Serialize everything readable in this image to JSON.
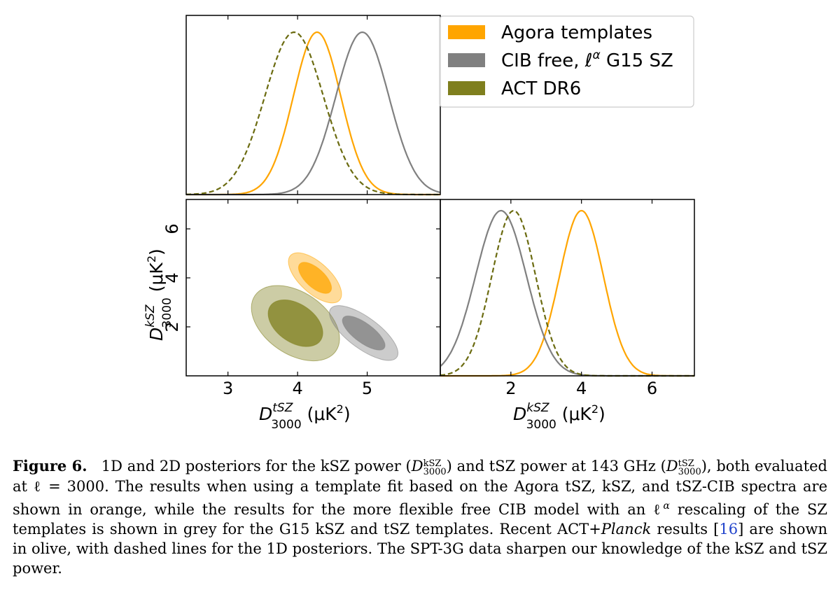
{
  "chart_data": [
    {
      "type": "line",
      "panel": "top-left (1D marginal of tSZ)",
      "xlabel": "D_3000^tSZ (μK²)",
      "xlim": [
        2.4,
        6.05
      ],
      "series": [
        {
          "name": "Agora templates",
          "color": "#ffa500",
          "style": "solid",
          "mean": 4.28,
          "sigma": 0.34
        },
        {
          "name": "CIB free, ℓ^α G15 SZ",
          "color": "#808080",
          "style": "solid",
          "mean": 4.93,
          "sigma": 0.38
        },
        {
          "name": "ACT DR6",
          "color": "#6b6b10",
          "style": "dashed",
          "mean": 3.95,
          "sigma": 0.42
        }
      ]
    },
    {
      "type": "scatter",
      "panel": "bottom-left (2D posterior)",
      "xlabel": "D_3000^tSZ (μK²)",
      "ylabel": "D_3000^kSZ (μK²)",
      "xlim": [
        2.4,
        6.05
      ],
      "ylim": [
        0,
        7.2
      ],
      "xticks": [
        3,
        4,
        5
      ],
      "yticks": [
        2,
        4,
        6
      ],
      "ellipses": [
        {
          "name": "Agora templates",
          "color": "#ffa500",
          "center": [
            4.25,
            4.0
          ],
          "slope": -2.6,
          "sigma_major": 0.4,
          "sigma_minor": 0.095
        },
        {
          "name": "CIB free, ℓ^α G15 SZ",
          "color": "#808080",
          "center": [
            4.95,
            1.75
          ],
          "slope": -2.1,
          "sigma_major": 0.45,
          "sigma_minor": 0.1
        },
        {
          "name": "ACT DR6",
          "color": "#7f7f1e",
          "center": [
            3.97,
            2.15
          ],
          "slope": -1.95,
          "sigma_major": 0.52,
          "sigma_minor": 0.2
        }
      ]
    },
    {
      "type": "line",
      "panel": "bottom-right (1D marginal of kSZ)",
      "xlabel": "D_3000^kSZ (μK²)",
      "xlim": [
        0,
        7.2
      ],
      "xticks": [
        2,
        4,
        6
      ],
      "series": [
        {
          "name": "Agora templates",
          "color": "#ffa500",
          "style": "solid",
          "mean": 4.0,
          "sigma": 0.62
        },
        {
          "name": "CIB free, ℓ^α G15 SZ",
          "color": "#808080",
          "style": "solid",
          "mean": 1.72,
          "sigma": 0.72
        },
        {
          "name": "ACT DR6",
          "color": "#6b6b10",
          "style": "dashed",
          "mean": 2.08,
          "sigma": 0.62
        }
      ]
    }
  ],
  "legend": {
    "placement": "top-right",
    "entries": [
      {
        "label_pre": "Agora templates",
        "label_sym": "",
        "label_post": "",
        "color": "#ffa500"
      },
      {
        "label_pre": "CIB free, ",
        "label_sym": "ℓ",
        "label_sup": "α",
        "label_post": " G15 SZ",
        "color": "#808080"
      },
      {
        "label_pre": "ACT DR6",
        "label_sym": "",
        "label_post": "",
        "color": "#7f7f1e"
      }
    ]
  },
  "axis_text": {
    "D": "D",
    "tsz_sup": "tSZ",
    "ksz_sup": "kSZ",
    "sub": "3000",
    "unit_open": " (μK",
    "unit_sq": "2",
    "unit_close": ")"
  },
  "caption": {
    "label": "Figure 6.",
    "p1": "1D and 2D posteriors for the kSZ power (",
    "sym1": "D",
    "sup1": "kSZ",
    "sub1": "3000",
    "p2": ") and tSZ power at 143 GHz (",
    "sym2": "D",
    "sup2": "tSZ",
    "sub2": "3000",
    "p3": "), both evaluated at ℓ = 3000. The results when using a template fit based on the Agora tSZ, kSZ, and tSZ-CIB spectra are shown in orange, while the results for the more flexible free CIB model with an ℓ",
    "sup_alpha": "α",
    "p4": " rescaling of the SZ templates is shown in grey for the G15 kSZ and tSZ templates. Recent ACT+",
    "planck": "Planck",
    "p5": " results [",
    "ref": "16",
    "p6": "] are shown in olive, with dashed lines for the 1D posteriors. The SPT-3G data sharpen our knowledge of the kSZ and tSZ power."
  }
}
